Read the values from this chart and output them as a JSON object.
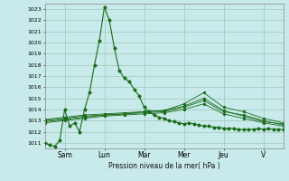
{
  "bg_color": "#c8eaea",
  "grid_color": "#a0c8b8",
  "line_color": "#1a6b1a",
  "xlabel": "Pression niveau de la mer( hPa )",
  "ylim": [
    1010.5,
    1023.5
  ],
  "yticks": [
    1011,
    1012,
    1013,
    1014,
    1015,
    1016,
    1017,
    1018,
    1019,
    1020,
    1021,
    1022,
    1023
  ],
  "x_day_labels": [
    "Sam",
    "Lun",
    "Mar",
    "Mer",
    "Jeu",
    "V"
  ],
  "x_day_positions": [
    24,
    72,
    120,
    168,
    216,
    264
  ],
  "xlim": [
    0,
    288
  ],
  "series_main": {
    "x": [
      0,
      6,
      12,
      18,
      24,
      30,
      36,
      42,
      48,
      54,
      60,
      66,
      72,
      78,
      84,
      90,
      96,
      102,
      108,
      114,
      120,
      126,
      132,
      138,
      144,
      150,
      156,
      162,
      168,
      174,
      180,
      186,
      192,
      198,
      204,
      210,
      216,
      222,
      228,
      234,
      240,
      246,
      252,
      258,
      264,
      270,
      276,
      282,
      288
    ],
    "y": [
      1011.0,
      1010.8,
      1010.7,
      1011.2,
      1014.0,
      1012.5,
      1012.8,
      1012.0,
      1014.0,
      1015.5,
      1018.0,
      1020.2,
      1023.2,
      1022.0,
      1019.5,
      1017.5,
      1016.8,
      1016.5,
      1015.8,
      1015.2,
      1014.2,
      1013.8,
      1013.5,
      1013.3,
      1013.2,
      1013.0,
      1012.9,
      1012.8,
      1012.7,
      1012.8,
      1012.7,
      1012.6,
      1012.5,
      1012.5,
      1012.4,
      1012.4,
      1012.3,
      1012.3,
      1012.3,
      1012.2,
      1012.2,
      1012.2,
      1012.2,
      1012.3,
      1012.2,
      1012.3,
      1012.2,
      1012.2,
      1012.2
    ]
  },
  "series_smooth": [
    {
      "x": [
        0,
        24,
        48,
        72,
        96,
        120,
        144,
        168,
        192,
        216,
        240,
        264,
        288
      ],
      "y": [
        1013.1,
        1013.3,
        1013.5,
        1013.6,
        1013.7,
        1013.8,
        1013.9,
        1014.5,
        1015.5,
        1014.2,
        1013.8,
        1013.2,
        1012.8
      ]
    },
    {
      "x": [
        0,
        24,
        48,
        72,
        96,
        120,
        144,
        168,
        192,
        216,
        240,
        264,
        288
      ],
      "y": [
        1013.0,
        1013.2,
        1013.4,
        1013.5,
        1013.6,
        1013.7,
        1013.8,
        1014.2,
        1014.8,
        1013.8,
        1013.5,
        1013.0,
        1012.6
      ]
    },
    {
      "x": [
        0,
        24,
        48,
        72,
        96,
        120,
        144,
        168,
        192,
        216,
        240,
        264,
        288
      ],
      "y": [
        1012.8,
        1013.0,
        1013.2,
        1013.4,
        1013.5,
        1013.6,
        1013.7,
        1014.0,
        1014.5,
        1013.6,
        1013.2,
        1012.8,
        1012.5
      ]
    },
    {
      "x": [
        0,
        24,
        48,
        72,
        96,
        120,
        144,
        168,
        192,
        216,
        240,
        264,
        288
      ],
      "y": [
        1012.9,
        1013.1,
        1013.3,
        1013.5,
        1013.6,
        1013.8,
        1013.9,
        1014.3,
        1015.0,
        1013.9,
        1013.4,
        1012.9,
        1012.7
      ]
    }
  ]
}
